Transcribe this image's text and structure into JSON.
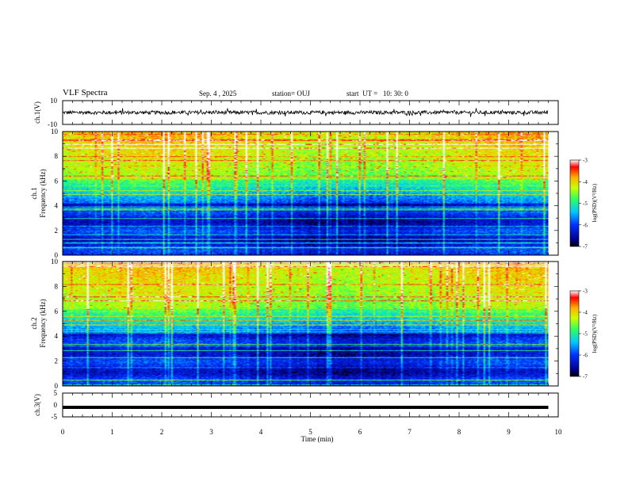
{
  "header": {
    "title": "VLF Spectra",
    "date": "Sep. 4 , 2025",
    "station": "station= OUJ",
    "start": "start  UT =   10: 30: 0"
  },
  "colors": {
    "colormap": [
      "#000080",
      "#0000ff",
      "#00a0ff",
      "#00ffff",
      "#40ff80",
      "#c0ff00",
      "#ffff00",
      "#ff8000",
      "#ff0000",
      "#ffffff"
    ],
    "trace": "#000000"
  },
  "chart_data": [
    {
      "type": "line",
      "panel": "ch1_waveform",
      "ylabel": "ch.1(V)",
      "ylim": [
        -10,
        10
      ],
      "y_ticks": [
        "10",
        "-10"
      ],
      "description_values": {
        "mean": 0,
        "amplitude_typical": 1.5
      },
      "x": [
        0,
        10
      ],
      "xlim": [
        0,
        10
      ]
    },
    {
      "type": "heatmap",
      "panel": "ch1_spectrogram",
      "ylabel": "ch.1\nFrequency  (kHz)",
      "ylabel_lines": [
        "ch.1",
        "Frequency  (kHz)"
      ],
      "ylim": [
        0,
        10
      ],
      "y_ticks": [
        "0",
        "2",
        "4",
        "6",
        "8",
        "10"
      ],
      "xlim": [
        0,
        10
      ],
      "colorbar": {
        "label": "log(PSD)(V²/Hz)",
        "range": [
          -7,
          -3
        ],
        "ticks": [
          "-3",
          "-4",
          "-5",
          "-6",
          "-7"
        ]
      }
    },
    {
      "type": "heatmap",
      "panel": "ch2_spectrogram",
      "ylabel": "ch.2\nFrequency  (kHz)",
      "ylabel_lines": [
        "ch.2",
        "Frequency  (kHz)"
      ],
      "ylim": [
        0,
        10
      ],
      "y_ticks": [
        "0",
        "2",
        "4",
        "6",
        "8",
        "10"
      ],
      "xlim": [
        0,
        10
      ],
      "colorbar": {
        "label": "log(PSD)(V²/Hz)",
        "range": [
          -7,
          -3
        ],
        "ticks": [
          "-3",
          "-4",
          "-5",
          "-6",
          "-7"
        ]
      }
    },
    {
      "type": "line",
      "panel": "ch3_waveform",
      "ylabel": "ch.3(V)",
      "ylim": [
        -5,
        5
      ],
      "y_ticks": [
        "5",
        "0",
        "-5"
      ],
      "description_values": {
        "constant_value": -1
      },
      "xlim": [
        0,
        10
      ]
    }
  ],
  "xaxis": {
    "label": "Time  (min)",
    "ticks": [
      "0",
      "1",
      "2",
      "3",
      "4",
      "5",
      "6",
      "7",
      "8",
      "9",
      "10"
    ],
    "data_end": 9.8
  }
}
